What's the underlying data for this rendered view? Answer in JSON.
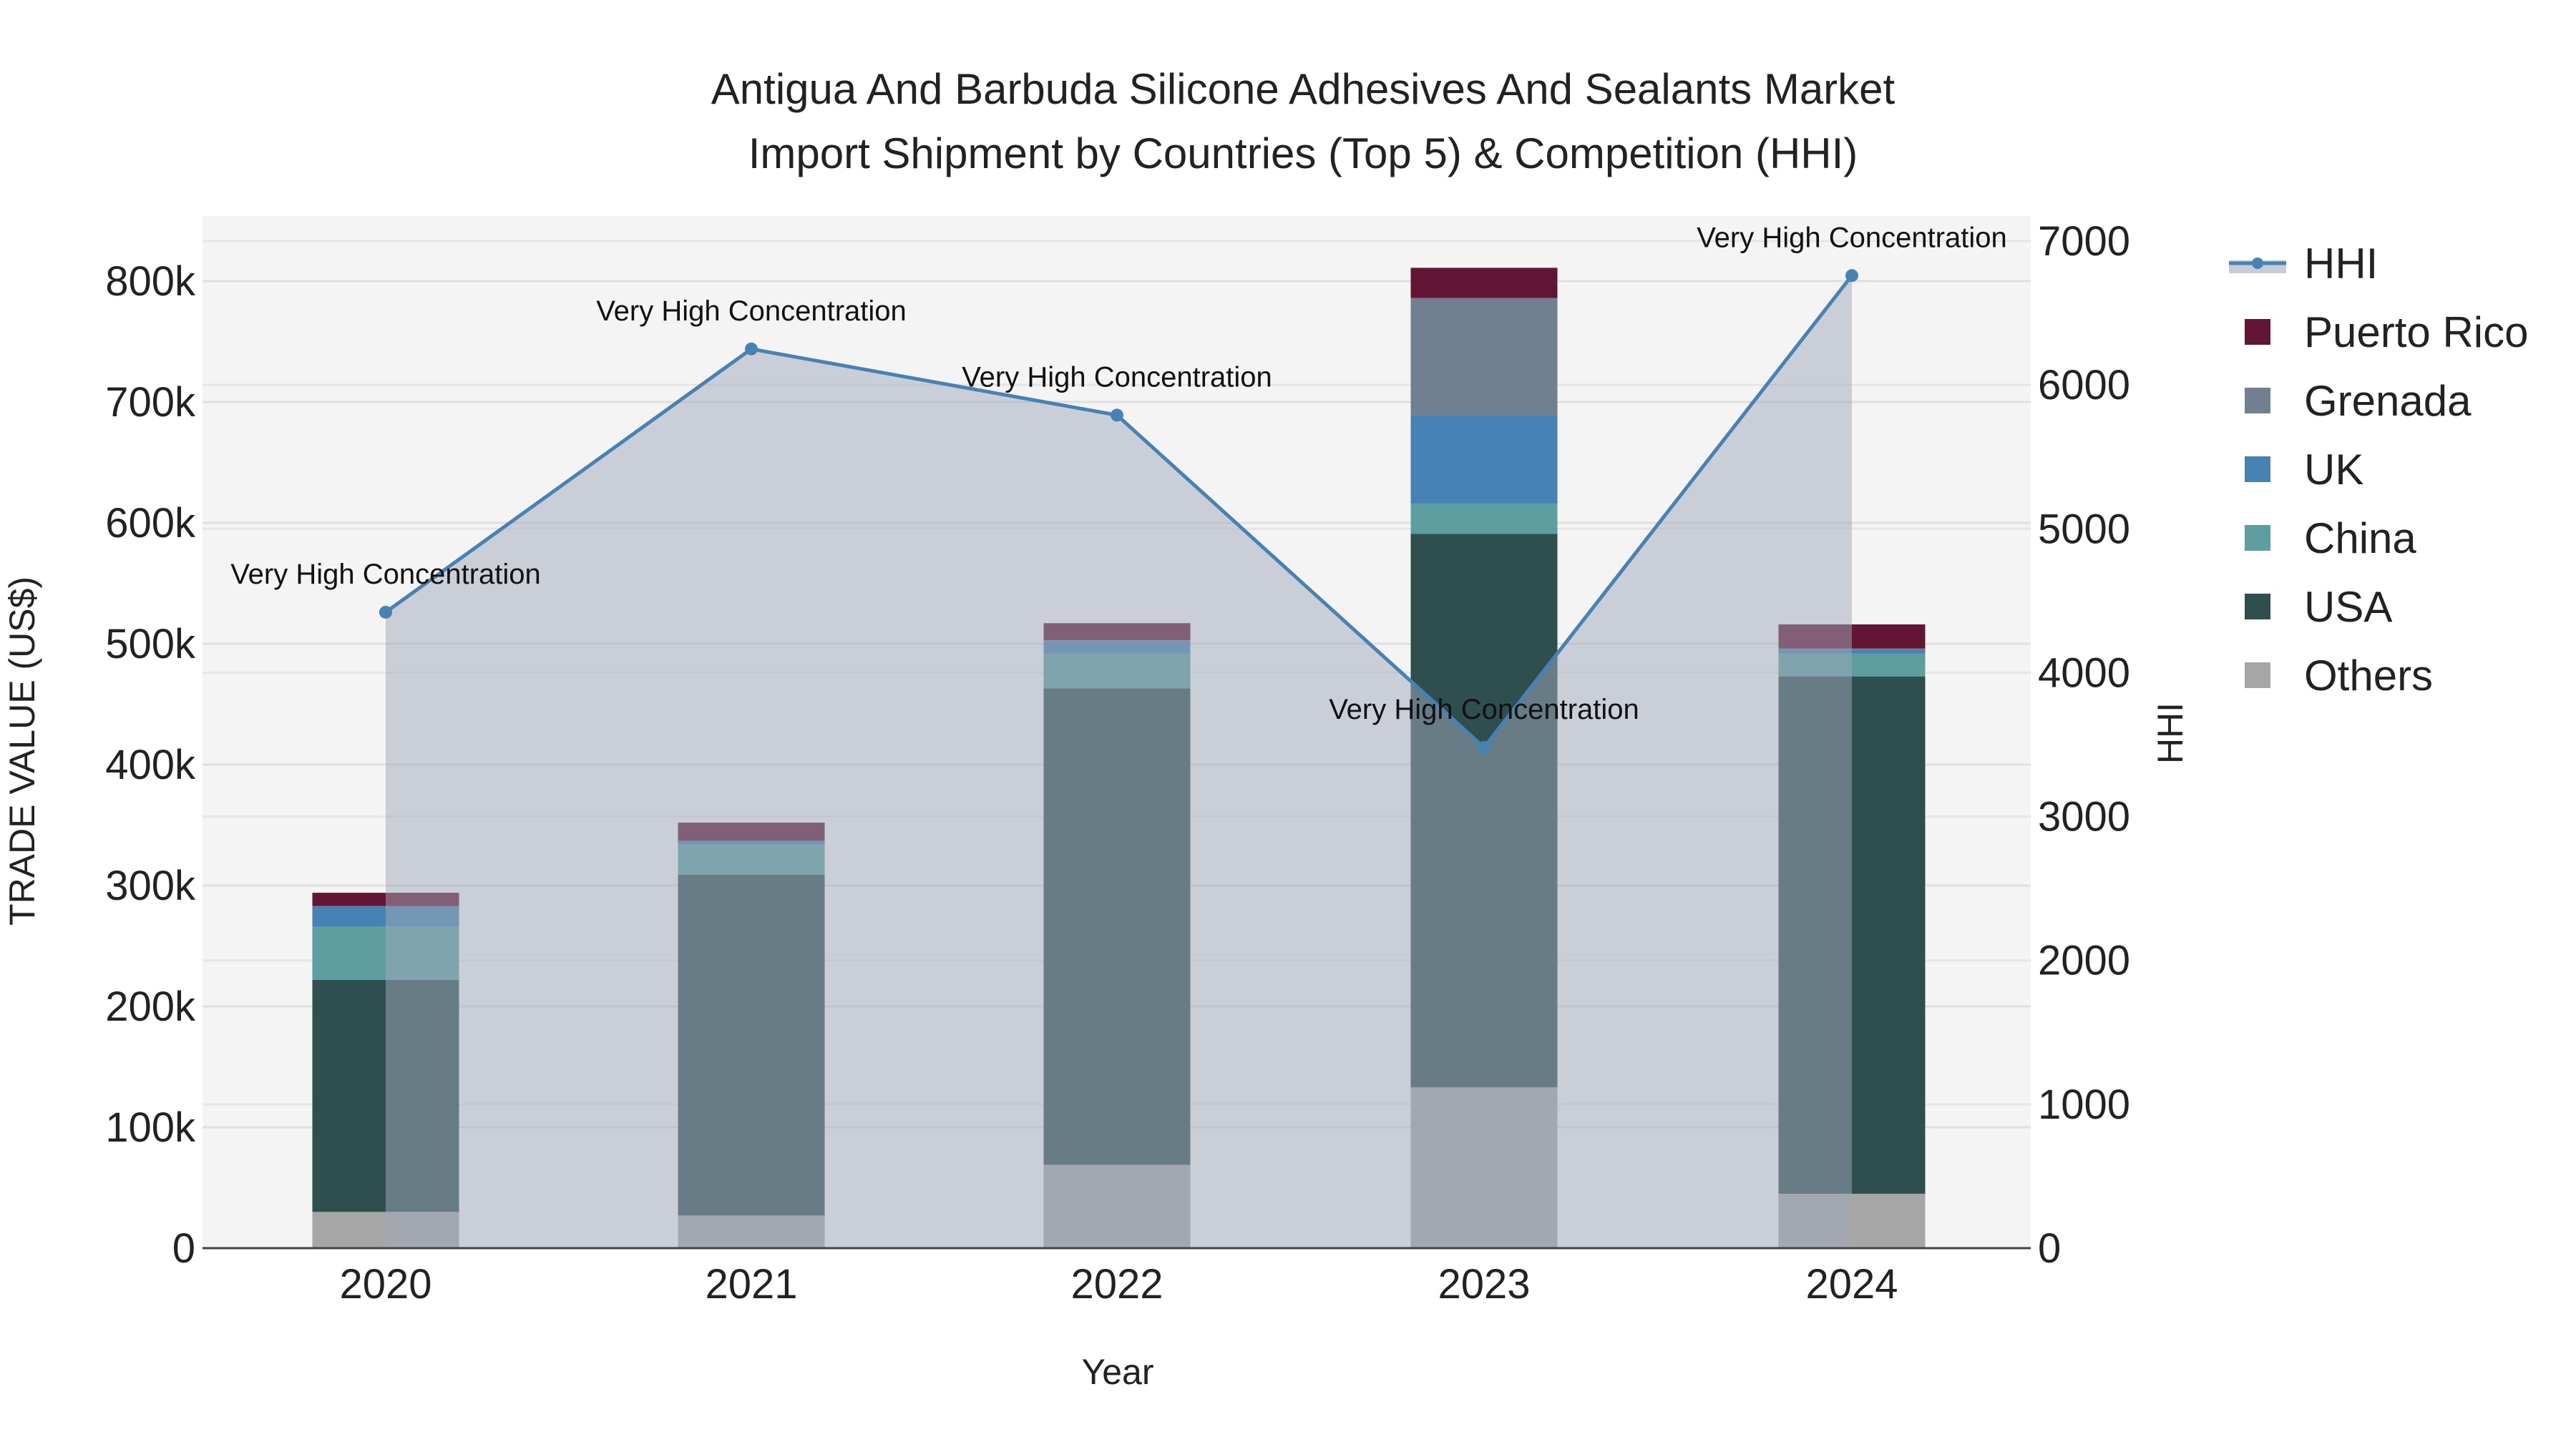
{
  "chart_data": {
    "type": "bar",
    "title_line1": "Antigua And Barbuda Silicone Adhesives And Sealants Market",
    "title_line2": "Import Shipment by Countries (Top 5) & Competition (HHI)",
    "xlabel": "Year",
    "ylabel": "TRADE VALUE (US$)",
    "y2label": "HHI",
    "categories": [
      "2020",
      "2021",
      "2022",
      "2023",
      "2024"
    ],
    "ylim": [
      0,
      850000
    ],
    "y_ticks": [
      0,
      100000,
      200000,
      300000,
      400000,
      500000,
      600000,
      700000,
      800000
    ],
    "y_tick_labels": [
      "0",
      "100k",
      "200k",
      "300k",
      "400k",
      "500k",
      "600k",
      "700k",
      "800k"
    ],
    "y2lim": [
      0,
      7300
    ],
    "y2_ticks": [
      0,
      1000,
      2000,
      3000,
      4000,
      5000,
      6000,
      7000
    ],
    "y2_tick_labels": [
      "0",
      "1000",
      "2000",
      "3000",
      "4000",
      "5000",
      "6000",
      "7000"
    ],
    "grid": true,
    "legend_placement": "right",
    "series": [
      {
        "name": "Others",
        "color": "#a6a6a6",
        "values": [
          30000,
          27000,
          69000,
          133000,
          45000
        ]
      },
      {
        "name": "USA",
        "color": "#2f4f4f",
        "values": [
          192000,
          282000,
          394000,
          458000,
          428000
        ]
      },
      {
        "name": "China",
        "color": "#5f9ea0",
        "values": [
          44000,
          25000,
          29000,
          25000,
          19000
        ]
      },
      {
        "name": "UK",
        "color": "#4682b4",
        "values": [
          17000,
          3000,
          10000,
          73000,
          3000
        ]
      },
      {
        "name": "Grenada",
        "color": "#708090",
        "values": [
          0,
          0,
          1000,
          97000,
          1000
        ]
      },
      {
        "name": "Puerto Rico",
        "color": "#631535",
        "values": [
          11000,
          15000,
          14000,
          25000,
          20000
        ]
      }
    ],
    "hhi": {
      "name": "HHI",
      "color": "#4682b4",
      "values": [
        4420,
        6250,
        5790,
        3480,
        6760
      ],
      "annotations": [
        "Very High Concentration",
        "Very High Concentration",
        "Very High Concentration",
        "Very High Concentration",
        "Very High Concentration"
      ]
    },
    "legend": [
      "HHI",
      "Puerto Rico",
      "Grenada",
      "UK",
      "China",
      "USA",
      "Others"
    ]
  }
}
